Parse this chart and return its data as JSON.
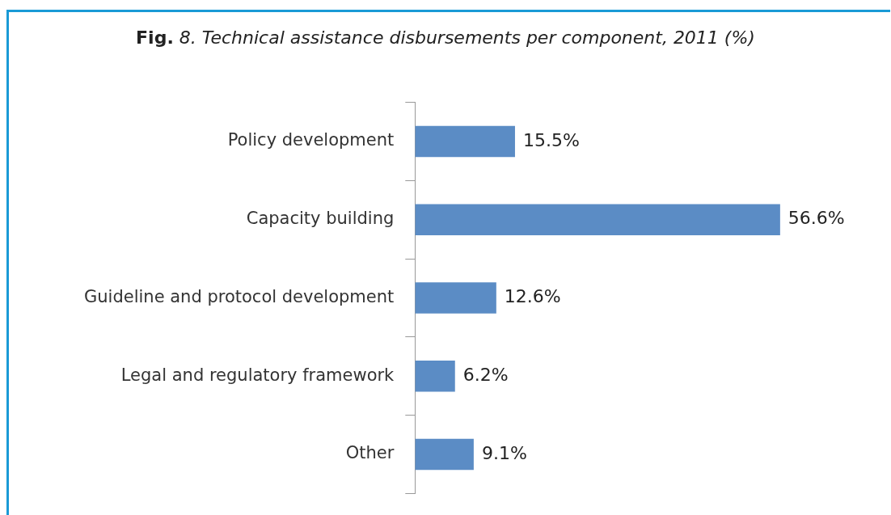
{
  "chart_data": {
    "type": "bar",
    "orientation": "horizontal",
    "title": "Fig. 8. Technical assistance disbursements per component, 2011 (%)",
    "categories": [
      "Policy development",
      "Capacity building",
      "Guideline and protocol development",
      "Legal and regulatory framework",
      "Other"
    ],
    "values": [
      15.5,
      56.6,
      12.6,
      6.2,
      9.1
    ],
    "color": "#5b8cc5",
    "value_labels": [
      "15.5%",
      "56.6%",
      "12.6%",
      "6.2%",
      "9.1%"
    ],
    "grid": false,
    "legend": false,
    "tick_labels": "y"
  }
}
